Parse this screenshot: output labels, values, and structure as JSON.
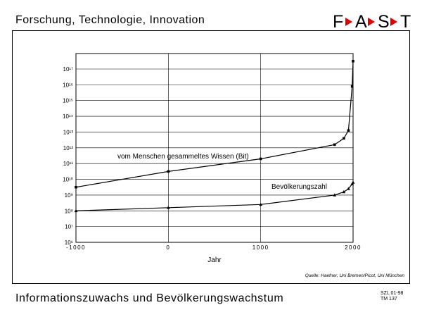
{
  "header": {
    "title": "Forschung, Technologie, Innovation"
  },
  "logo": {
    "letters": [
      "F",
      "A",
      "S",
      "T"
    ],
    "arrow_color": "#e00000"
  },
  "footer": {
    "title": "Informationszuwachs und Bevölkerungswachstum",
    "code_line1": "SZL 01-98",
    "code_line2": "TM 137"
  },
  "chart_data": {
    "type": "line",
    "title": "",
    "xlabel": "Jahr",
    "ylabel": "",
    "y_scale": "log",
    "xlim": [
      -1000,
      2000
    ],
    "ylim_exponent": [
      6,
      17
    ],
    "x_tick_labels": [
      {
        "value": -1000,
        "label": "-1000"
      },
      {
        "value": 0,
        "label": "0"
      },
      {
        "value": 1000,
        "label": "1000"
      },
      {
        "value": 2000,
        "label": "2000"
      }
    ],
    "y_tick_labels": [
      {
        "exponent": 6,
        "label": "10⁶"
      },
      {
        "exponent": 7,
        "label": "10⁷"
      },
      {
        "exponent": 8,
        "label": "10⁸"
      },
      {
        "exponent": 9,
        "label": "10⁹"
      },
      {
        "exponent": 10,
        "label": "10¹⁰"
      },
      {
        "exponent": 11,
        "label": "10¹¹"
      },
      {
        "exponent": 12,
        "label": "10¹²"
      },
      {
        "exponent": 13,
        "label": "10¹³"
      },
      {
        "exponent": 14,
        "label": "10¹⁴"
      },
      {
        "exponent": 15,
        "label": "10¹⁵"
      },
      {
        "exponent": 16,
        "label": "10¹⁶"
      },
      {
        "exponent": 17,
        "label": "10¹⁷"
      }
    ],
    "series": [
      {
        "name": "vom Menschen gesammeltes Wissen (Bit)",
        "marker": "square",
        "x": [
          -1000,
          0,
          1000,
          1800,
          1900,
          1950,
          1990,
          2000
        ],
        "log10_y": [
          9.5,
          10.5,
          11.3,
          12.2,
          12.6,
          13.1,
          15.9,
          17.5
        ]
      },
      {
        "name": "Bevölkerungszahl",
        "marker": "triangle",
        "x": [
          -1000,
          0,
          1000,
          1800,
          1900,
          1950,
          1990,
          2000
        ],
        "log10_y": [
          8.0,
          8.2,
          8.4,
          9.0,
          9.2,
          9.4,
          9.7,
          9.8
        ]
      }
    ],
    "grid": {
      "vertical": true,
      "horizontal": true
    },
    "source_note": "Quelle: Haefner, Uni Bremen/Picot, Uni München"
  }
}
